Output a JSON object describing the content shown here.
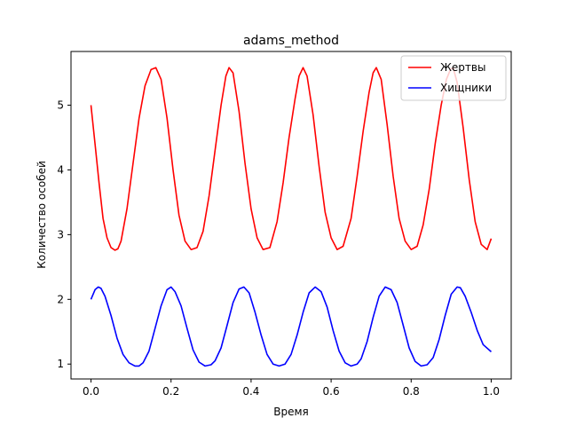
{
  "chart_data": {
    "type": "line",
    "title": "adams_method",
    "xlabel": "Время",
    "ylabel": "Количество особей",
    "xlim": [
      -0.05,
      1.05
    ],
    "ylim": [
      0.77,
      5.83
    ],
    "xticks": [
      0.0,
      0.2,
      0.4,
      0.6,
      0.8,
      1.0
    ],
    "xtick_labels": [
      "0.0",
      "0.2",
      "0.4",
      "0.6",
      "0.8",
      "1.0"
    ],
    "yticks": [
      1,
      2,
      3,
      4,
      5
    ],
    "ytick_labels": [
      "1",
      "2",
      "3",
      "4",
      "5"
    ],
    "grid": false,
    "legend_position": "top-right",
    "series": [
      {
        "name": "Жертвы",
        "color": "#ff0000",
        "x": [
          0.0,
          0.01,
          0.02,
          0.03,
          0.04,
          0.05,
          0.06,
          0.067,
          0.075,
          0.09,
          0.105,
          0.12,
          0.135,
          0.15,
          0.162,
          0.175,
          0.19,
          0.205,
          0.22,
          0.235,
          0.25,
          0.265,
          0.28,
          0.295,
          0.31,
          0.325,
          0.337,
          0.345,
          0.355,
          0.37,
          0.385,
          0.4,
          0.415,
          0.43,
          0.447,
          0.465,
          0.48,
          0.495,
          0.51,
          0.52,
          0.53,
          0.54,
          0.555,
          0.57,
          0.585,
          0.6,
          0.615,
          0.63,
          0.65,
          0.665,
          0.68,
          0.695,
          0.705,
          0.713,
          0.725,
          0.74,
          0.755,
          0.77,
          0.785,
          0.8,
          0.815,
          0.83,
          0.845,
          0.86,
          0.875,
          0.888,
          0.898,
          0.905,
          0.915,
          0.93,
          0.945,
          0.96,
          0.975,
          0.99,
          1.0
        ],
        "y": [
          5.0,
          4.4,
          3.8,
          3.25,
          2.95,
          2.8,
          2.76,
          2.78,
          2.9,
          3.4,
          4.1,
          4.8,
          5.3,
          5.55,
          5.58,
          5.4,
          4.8,
          4.0,
          3.3,
          2.9,
          2.77,
          2.8,
          3.05,
          3.6,
          4.3,
          5.0,
          5.45,
          5.58,
          5.5,
          4.9,
          4.1,
          3.4,
          2.95,
          2.77,
          2.8,
          3.2,
          3.8,
          4.5,
          5.1,
          5.45,
          5.58,
          5.45,
          4.85,
          4.05,
          3.35,
          2.95,
          2.77,
          2.82,
          3.25,
          3.9,
          4.6,
          5.2,
          5.5,
          5.58,
          5.4,
          4.7,
          3.9,
          3.25,
          2.9,
          2.77,
          2.82,
          3.15,
          3.7,
          4.4,
          5.0,
          5.4,
          5.55,
          5.58,
          5.35,
          4.65,
          3.85,
          3.2,
          2.85,
          2.77,
          2.94
        ]
      },
      {
        "name": "Хищники",
        "color": "#0000ff",
        "x": [
          0.0,
          0.01,
          0.018,
          0.025,
          0.035,
          0.05,
          0.065,
          0.08,
          0.095,
          0.11,
          0.12,
          0.13,
          0.145,
          0.16,
          0.175,
          0.19,
          0.2,
          0.21,
          0.225,
          0.24,
          0.255,
          0.27,
          0.285,
          0.3,
          0.31,
          0.325,
          0.34,
          0.355,
          0.37,
          0.382,
          0.395,
          0.41,
          0.425,
          0.44,
          0.455,
          0.47,
          0.485,
          0.5,
          0.515,
          0.53,
          0.545,
          0.56,
          0.575,
          0.59,
          0.605,
          0.62,
          0.635,
          0.65,
          0.665,
          0.675,
          0.69,
          0.705,
          0.72,
          0.735,
          0.75,
          0.765,
          0.78,
          0.795,
          0.81,
          0.825,
          0.84,
          0.855,
          0.87,
          0.885,
          0.9,
          0.915,
          0.923,
          0.935,
          0.95,
          0.965,
          0.98,
          1.0
        ],
        "y": [
          2.0,
          2.15,
          2.19,
          2.17,
          2.05,
          1.75,
          1.4,
          1.15,
          1.02,
          0.97,
          0.97,
          1.02,
          1.2,
          1.55,
          1.9,
          2.15,
          2.19,
          2.12,
          1.9,
          1.55,
          1.22,
          1.03,
          0.97,
          0.99,
          1.05,
          1.25,
          1.6,
          1.95,
          2.16,
          2.19,
          2.1,
          1.8,
          1.45,
          1.15,
          1.0,
          0.97,
          1.0,
          1.15,
          1.45,
          1.8,
          2.1,
          2.19,
          2.12,
          1.88,
          1.52,
          1.2,
          1.02,
          0.97,
          1.0,
          1.08,
          1.35,
          1.72,
          2.05,
          2.19,
          2.15,
          1.95,
          1.6,
          1.25,
          1.04,
          0.97,
          0.99,
          1.1,
          1.38,
          1.75,
          2.08,
          2.19,
          2.18,
          2.05,
          1.8,
          1.52,
          1.3,
          1.19
        ]
      }
    ]
  }
}
